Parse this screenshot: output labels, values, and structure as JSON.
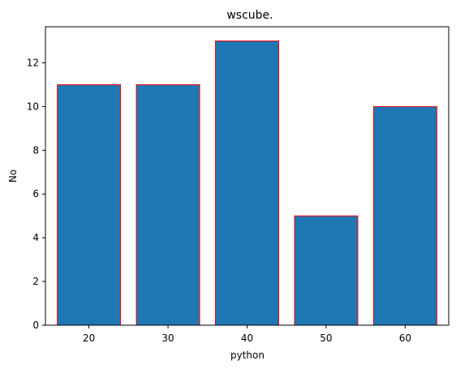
{
  "chart_data": {
    "type": "bar",
    "title": "wscube.",
    "xlabel": "python",
    "ylabel": "No",
    "categories": [
      "20",
      "30",
      "40",
      "50",
      "60"
    ],
    "x": [
      20,
      30,
      40,
      50,
      60
    ],
    "values": [
      11,
      11,
      13,
      5,
      10
    ],
    "ylim": [
      0,
      13.65
    ],
    "yticks": [
      0,
      2,
      4,
      6,
      8,
      10,
      12
    ],
    "grid": false,
    "bar_color": "#1f77b4",
    "bar_edge_color": "#ff0000"
  }
}
